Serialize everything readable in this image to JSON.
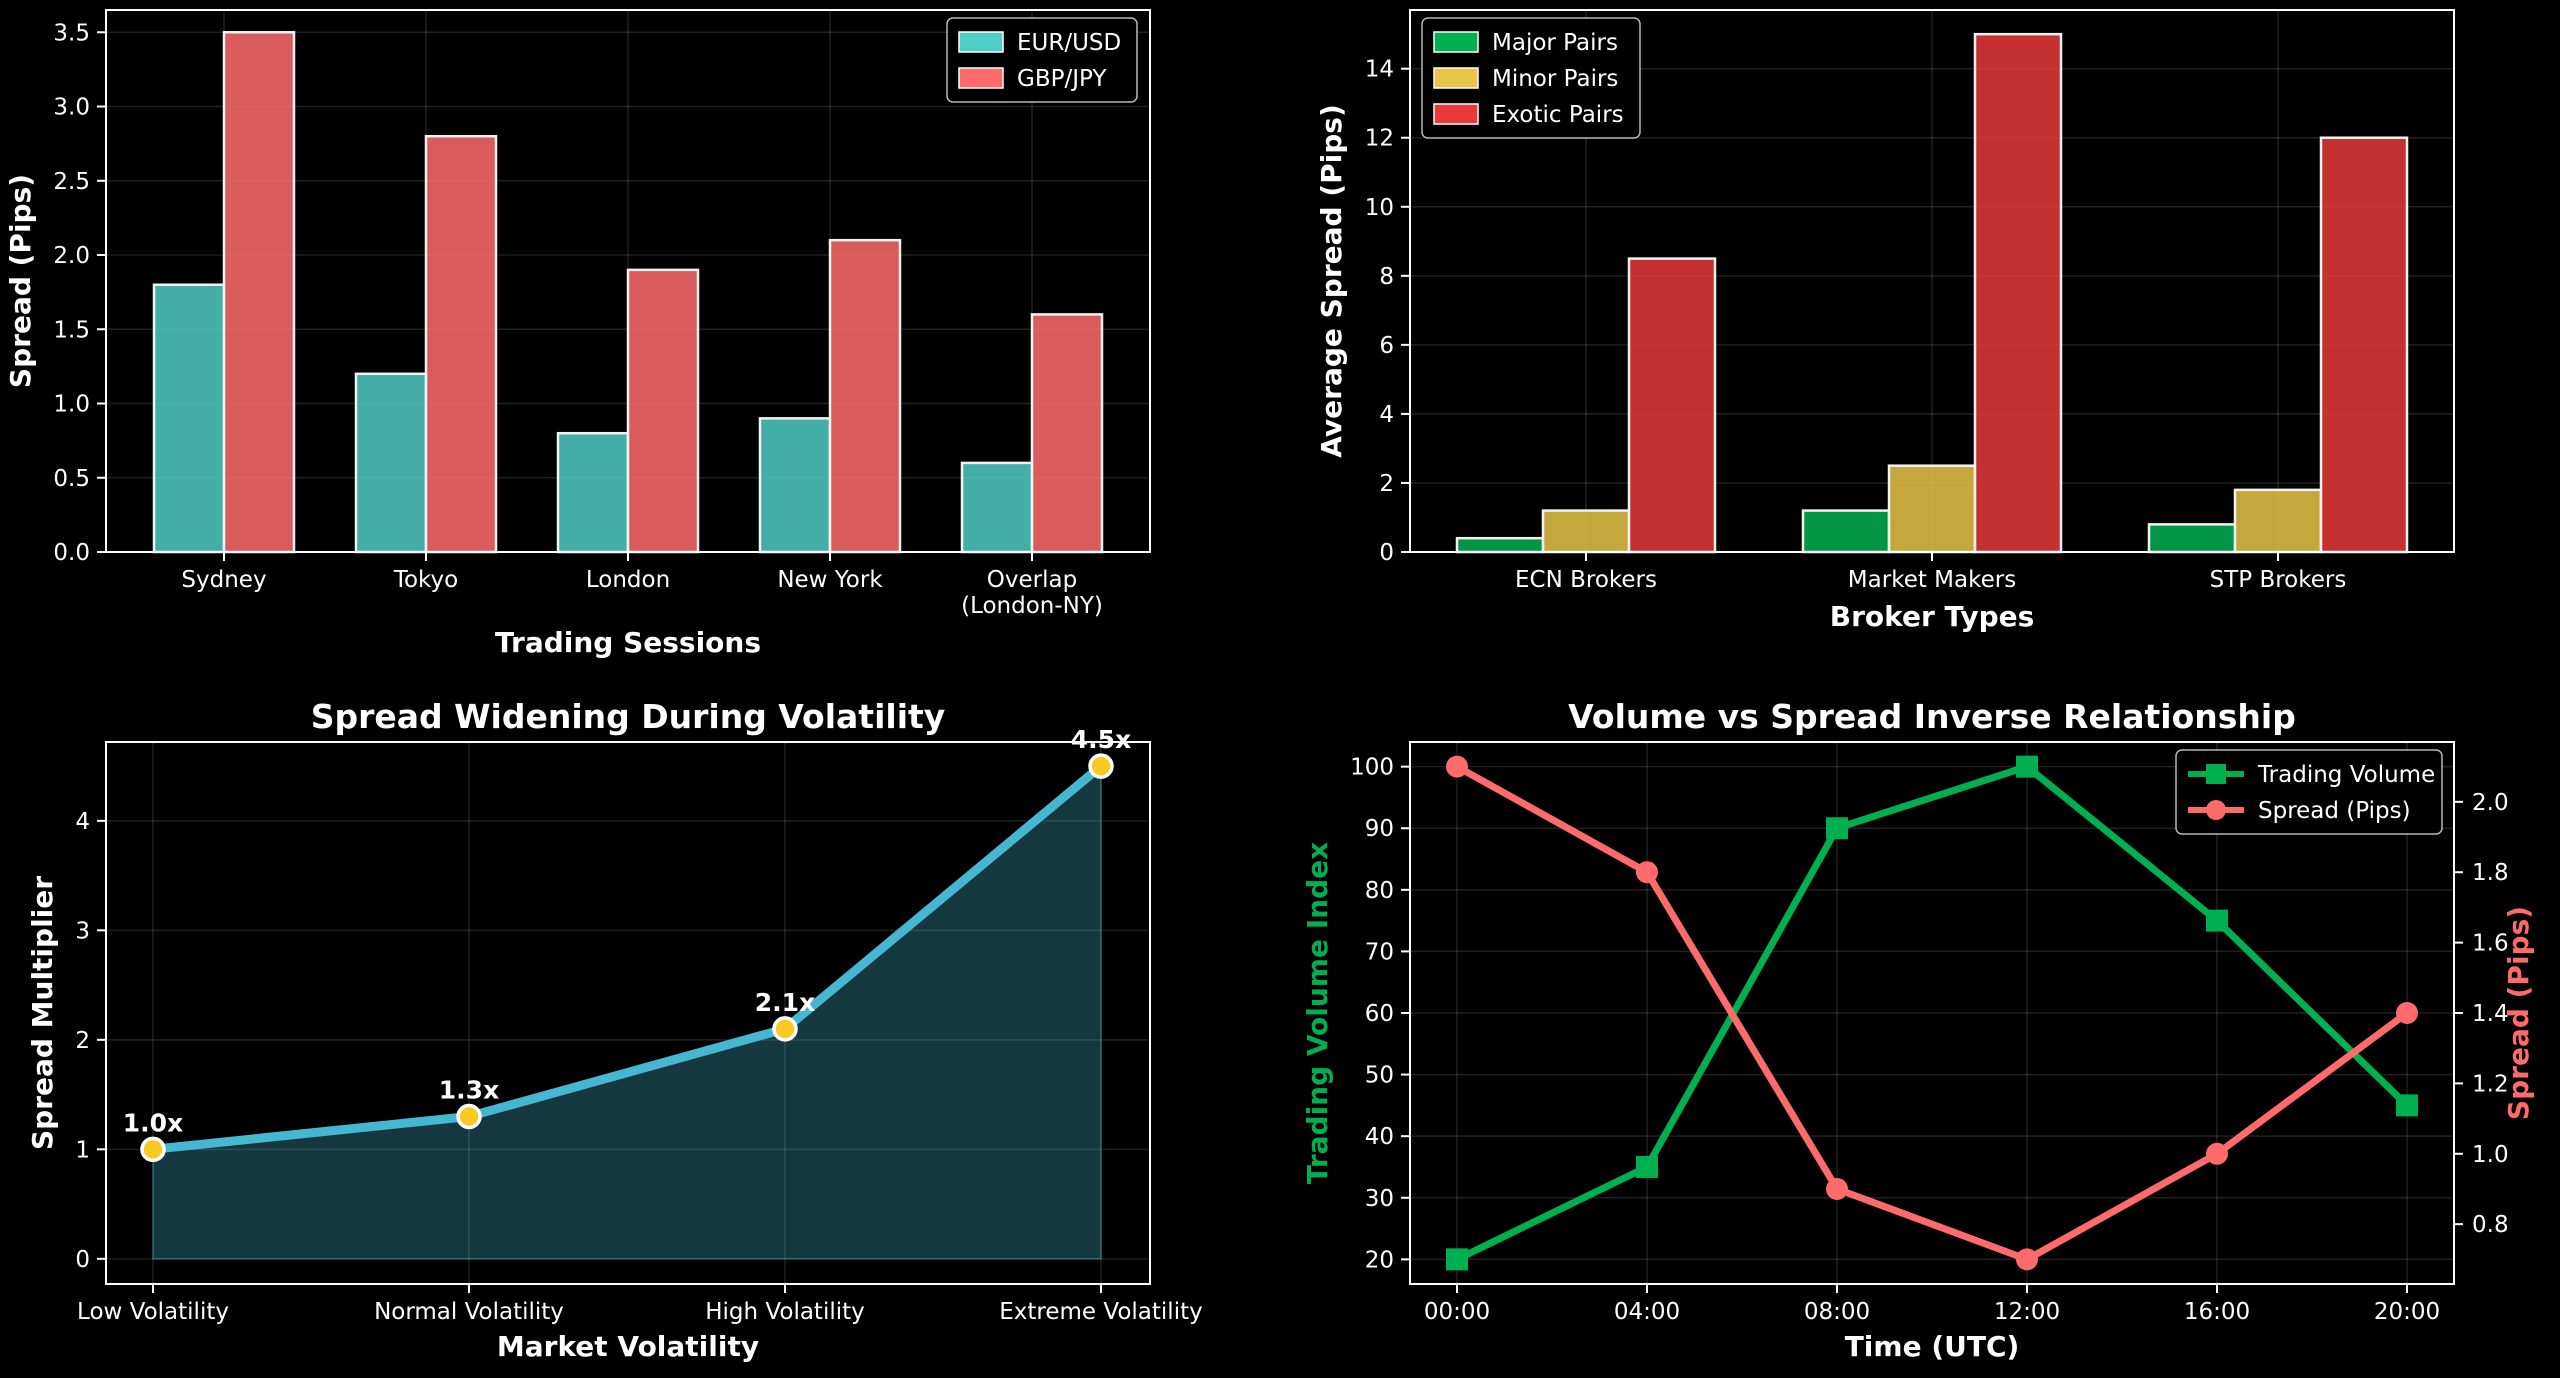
{
  "chart_data": [
    {
      "type": "bar",
      "title": "",
      "xlabel": "Trading Sessions",
      "ylabel": "Spread (Pips)",
      "categories": [
        "Sydney",
        "Tokyo",
        "London",
        "New York",
        "Overlap\n(London-NY)"
      ],
      "series": [
        {
          "name": "EUR/USD",
          "values": [
            1.8,
            1.2,
            0.8,
            0.9,
            0.6
          ],
          "color": "#4ecdc4"
        },
        {
          "name": "GBP/JPY",
          "values": [
            3.5,
            2.8,
            1.9,
            2.1,
            1.6
          ],
          "color": "#ff6b6b"
        }
      ],
      "ylim": [
        0,
        3.65
      ],
      "yticks": [
        0.0,
        0.5,
        1.0,
        1.5,
        2.0,
        2.5,
        3.0,
        3.5
      ],
      "ytick_labels": [
        "0.0",
        "0.5",
        "1.0",
        "1.5",
        "2.0",
        "2.5",
        "3.0",
        "3.5"
      ],
      "grid": true,
      "legend": "top-right"
    },
    {
      "type": "bar",
      "title": "",
      "xlabel": "Broker Types",
      "ylabel": "Average Spread (Pips)",
      "categories": [
        "ECN Brokers",
        "Market Makers",
        "STP Brokers"
      ],
      "series": [
        {
          "name": "Major Pairs",
          "values": [
            0.4,
            1.2,
            0.8
          ],
          "color": "#00b050"
        },
        {
          "name": "Minor Pairs",
          "values": [
            1.2,
            2.5,
            1.8
          ],
          "color": "#e8c547"
        },
        {
          "name": "Exotic Pairs",
          "values": [
            8.5,
            15.0,
            12.0
          ],
          "color": "#e83a3a"
        }
      ],
      "ylim": [
        0,
        15.7
      ],
      "yticks": [
        0,
        2,
        4,
        6,
        8,
        10,
        12,
        14
      ],
      "ytick_labels": [
        "0",
        "2",
        "4",
        "6",
        "8",
        "10",
        "12",
        "14"
      ],
      "grid": true,
      "legend": "top-left"
    },
    {
      "type": "area",
      "title": "Spread Widening During Volatility",
      "xlabel": "Market Volatility",
      "ylabel": "Spread Multiplier",
      "categories": [
        "Low Volatility",
        "Normal Volatility",
        "High Volatility",
        "Extreme Volatility"
      ],
      "values": [
        1.0,
        1.3,
        2.1,
        4.5
      ],
      "data_labels": [
        "1.0x",
        "1.3x",
        "2.1x",
        "4.5x"
      ],
      "ylim": [
        -0.23,
        4.72
      ],
      "yticks": [
        0,
        1,
        2,
        3,
        4
      ],
      "ytick_labels": [
        "0",
        "1",
        "2",
        "3",
        "4"
      ],
      "line_color": "#45b7d1",
      "marker_color": "#f9ca24",
      "grid": true
    },
    {
      "type": "line",
      "title": "Volume vs Spread Inverse Relationship",
      "xlabel": "Time (UTC)",
      "ylabel": "Trading Volume Index",
      "ylabel_right": "Spread (Pips)",
      "x": [
        "00:00",
        "04:00",
        "08:00",
        "12:00",
        "16:00",
        "20:00"
      ],
      "series": [
        {
          "name": "Trading Volume",
          "values": [
            20,
            35,
            90,
            100,
            75,
            45
          ],
          "axis": "left",
          "color": "#00b050",
          "marker": "square"
        },
        {
          "name": "Spread (Pips)",
          "values": [
            2.1,
            1.8,
            0.9,
            0.7,
            1.0,
            1.4
          ],
          "axis": "right",
          "color": "#ff6b6b",
          "marker": "circle"
        }
      ],
      "ylim": [
        16,
        104
      ],
      "yticks": [
        20,
        30,
        40,
        50,
        60,
        70,
        80,
        90,
        100
      ],
      "ytick_labels": [
        "20",
        "30",
        "40",
        "50",
        "60",
        "70",
        "80",
        "90",
        "100"
      ],
      "ylim_right": [
        0.63,
        2.17
      ],
      "yticks_right": [
        0.8,
        1.0,
        1.2,
        1.4,
        1.6,
        1.8,
        2.0
      ],
      "ytick_labels_right": [
        "0.8",
        "1.0",
        "1.2",
        "1.4",
        "1.6",
        "1.8",
        "2.0"
      ],
      "grid": true,
      "legend": "top-right"
    }
  ]
}
